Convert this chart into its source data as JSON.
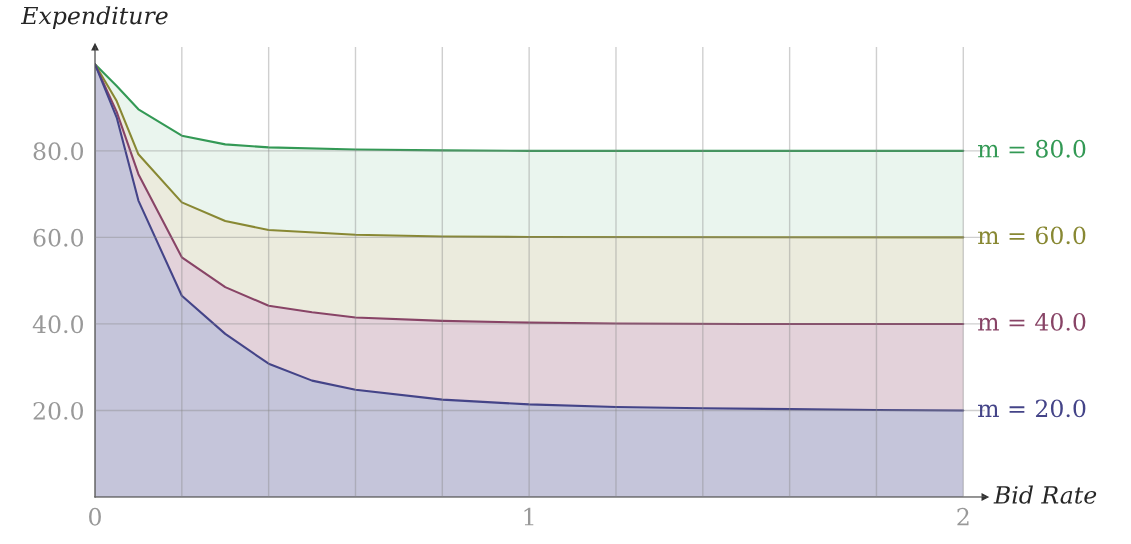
{
  "chart_data": {
    "type": "area",
    "xlabel": "Bid Rate",
    "ylabel": "Expenditure",
    "xlim": [
      0,
      2.05
    ],
    "ylim": [
      0,
      104
    ],
    "xticks": [
      0,
      {
        "value": 0.2,
        "label": null
      },
      {
        "value": 0.4,
        "label": null
      },
      {
        "value": 0.6,
        "label": null
      },
      {
        "value": 0.8,
        "label": null
      },
      1,
      {
        "value": 1.2,
        "label": null
      },
      {
        "value": 1.4,
        "label": null
      },
      {
        "value": 1.6,
        "label": null
      },
      {
        "value": 1.8,
        "label": null
      },
      2
    ],
    "yticks": [
      {
        "value": 0,
        "label": null
      },
      {
        "value": 20,
        "label": "20.0"
      },
      {
        "value": 40,
        "label": "40.0"
      },
      {
        "value": 60,
        "label": "60.0"
      },
      {
        "value": 80,
        "label": "80.0"
      }
    ],
    "grid": true,
    "legend": false,
    "series": [
      {
        "name": "m = 80.0",
        "color": "#339955",
        "x": [
          0,
          0.05,
          0.1,
          0.2,
          0.3,
          0.4,
          0.6,
          0.8,
          1.0,
          2.0
        ],
        "values": [
          100,
          95,
          89.6,
          83.5,
          81.5,
          80.8,
          80.3,
          80.1,
          80,
          80
        ]
      },
      {
        "name": "m = 60.0",
        "color": "#888833",
        "x": [
          0,
          0.05,
          0.1,
          0.2,
          0.3,
          0.4,
          0.6,
          0.8,
          1.0,
          2.0
        ],
        "values": [
          100,
          91.5,
          79.2,
          68.1,
          63.8,
          61.7,
          60.6,
          60.2,
          60.1,
          60
        ]
      },
      {
        "name": "m = 40.0",
        "color": "#884466",
        "x": [
          0,
          0.05,
          0.1,
          0.2,
          0.3,
          0.4,
          0.5,
          0.6,
          0.8,
          1.0,
          1.2,
          1.5,
          2.0
        ],
        "values": [
          100,
          89,
          74.6,
          55.4,
          48.5,
          44.2,
          42.7,
          41.5,
          40.7,
          40.3,
          40.1,
          40,
          40
        ]
      },
      {
        "name": "m = 20.0",
        "color": "#444488",
        "x": [
          0,
          0.05,
          0.1,
          0.2,
          0.3,
          0.4,
          0.5,
          0.6,
          0.8,
          1.0,
          1.2,
          1.4,
          1.6,
          1.8,
          2.0
        ],
        "values": [
          100,
          87.7,
          68.5,
          46.5,
          37.7,
          30.8,
          26.9,
          24.8,
          22.5,
          21.4,
          20.8,
          20.5,
          20.3,
          20.1,
          20
        ]
      }
    ]
  }
}
